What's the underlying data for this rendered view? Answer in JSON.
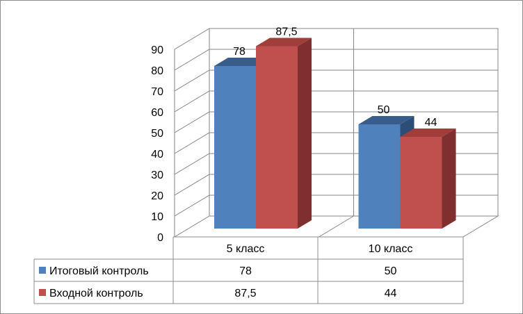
{
  "chart_data": {
    "type": "bar",
    "title": "",
    "xlabel": "",
    "ylabel": "",
    "categories": [
      "5 класс",
      "10 класс"
    ],
    "series": [
      {
        "name": "Итоговый контроль",
        "values": [
          78,
          50
        ],
        "value_labels": [
          "78",
          "50"
        ],
        "color": "#4f81bd",
        "top_color": "#385d8a",
        "side_color": "#2c4d75"
      },
      {
        "name": "Входной контроль",
        "values": [
          87.5,
          44
        ],
        "value_labels": [
          "87,5",
          "44"
        ],
        "color": "#c0504d",
        "top_color": "#a03e3b",
        "side_color": "#7f2f2d"
      }
    ],
    "ylim": [
      0,
      90
    ],
    "yticks": [
      0,
      10,
      20,
      30,
      40,
      50,
      60,
      70,
      80,
      90
    ],
    "grid": true,
    "legend": "data-table",
    "three_d": true
  }
}
